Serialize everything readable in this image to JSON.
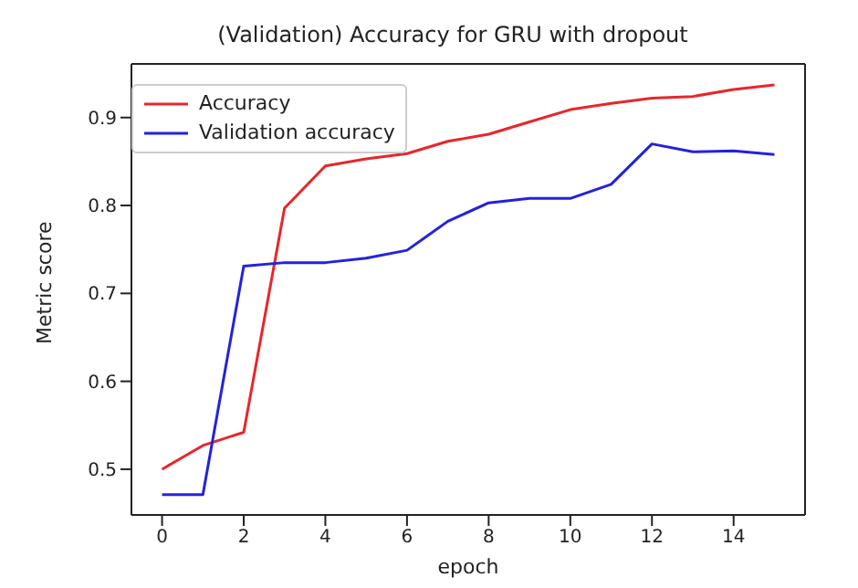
{
  "chart_data": {
    "type": "line",
    "title": "(Validation) Accuracy for GRU with dropout",
    "xlabel": "epoch",
    "ylabel": "Metric score",
    "x": [
      0,
      1,
      2,
      3,
      4,
      5,
      6,
      7,
      8,
      9,
      10,
      11,
      12,
      13,
      14,
      15
    ],
    "series": [
      {
        "name": "Accuracy",
        "color": "#e8262a",
        "values": [
          0.5,
          0.527,
          0.542,
          0.797,
          0.845,
          0.853,
          0.859,
          0.873,
          0.881,
          0.895,
          0.909,
          0.916,
          0.922,
          0.924,
          0.932,
          0.937
        ]
      },
      {
        "name": "Validation accuracy",
        "color": "#2222dd",
        "values": [
          0.471,
          0.471,
          0.731,
          0.735,
          0.735,
          0.74,
          0.749,
          0.782,
          0.803,
          0.808,
          0.808,
          0.824,
          0.87,
          0.861,
          0.862,
          0.858
        ]
      }
    ],
    "xlim": [
      -0.75,
      15.75
    ],
    "ylim": [
      0.448,
      0.961
    ],
    "xticks": [
      0,
      2,
      4,
      6,
      8,
      10,
      12,
      14
    ],
    "yticks": [
      0.5,
      0.6,
      0.7,
      0.8,
      0.9
    ],
    "grid": false,
    "legend": "top left",
    "marker": "none",
    "line_style": "solid"
  }
}
